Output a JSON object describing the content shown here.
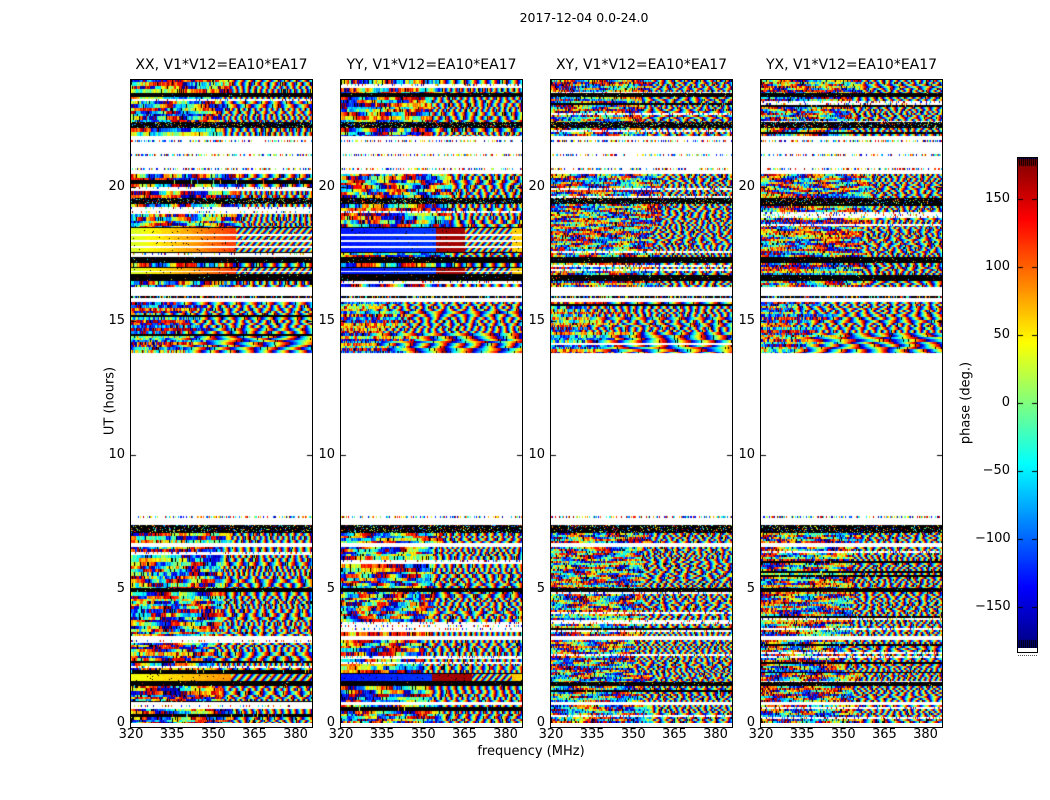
{
  "figure": {
    "title": "2017-12-04 0.0-24.0"
  },
  "chart_data": {
    "type": "heatmap",
    "title": "2017-12-04 0.0-24.0",
    "subplots": [
      {
        "title": "XX, V1*V12=EA10*EA17",
        "polarization": "XX"
      },
      {
        "title": "YY, V1*V12=EA10*EA17",
        "polarization": "YY"
      },
      {
        "title": "XY, V1*V12=EA10*EA17",
        "polarization": "XY"
      },
      {
        "title": "YX, V1*V12=EA10*EA17",
        "polarization": "YX"
      }
    ],
    "baseline": "V1*V12=EA10*EA17",
    "xlabel": "frequency (MHz)",
    "ylabel": "UT (hours)",
    "x_ticks": [
      320,
      335,
      350,
      365,
      380
    ],
    "x_range": [
      320,
      386
    ],
    "y_ticks": [
      0,
      5,
      10,
      15,
      20
    ],
    "y_range": [
      0,
      24
    ],
    "colorbar": {
      "label": "phase (deg.)",
      "ticks": [
        150,
        100,
        50,
        0,
        -50,
        -100,
        -150
      ],
      "range": [
        -180,
        180
      ],
      "colormap": "jet"
    },
    "data_gaps_ut": [
      [
        7.72,
        13.82
      ],
      [
        20.5,
        21.9
      ],
      [
        15.95,
        16.28
      ],
      [
        3.1,
        3.25
      ]
    ],
    "bands": [
      {
        "ut": [
          23.5,
          24.0
        ],
        "kind": "noise",
        "bias": [
          70,
          -100,
          0,
          0
        ],
        "fringe": 0.55
      },
      {
        "ut": [
          23.38,
          23.5
        ],
        "kind": "black"
      },
      {
        "ut": [
          22.45,
          23.38
        ],
        "kind": "noise",
        "bias": [
          70,
          -100,
          0,
          0
        ],
        "fringe": 0.5,
        "diag": 1
      },
      {
        "ut": [
          22.2,
          22.45
        ],
        "kind": "blacknoise"
      },
      {
        "ut": [
          21.9,
          22.2
        ],
        "kind": "noise",
        "bias": [
          60,
          -90,
          0,
          0
        ],
        "fringe": 0.5
      },
      {
        "ut": [
          21.75,
          21.9
        ],
        "kind": "blank"
      },
      {
        "ut": [
          21.65,
          21.75
        ],
        "kind": "thin"
      },
      {
        "ut": [
          21.25,
          21.65
        ],
        "kind": "blank"
      },
      {
        "ut": [
          21.1,
          21.25
        ],
        "kind": "thin"
      },
      {
        "ut": [
          20.72,
          21.1
        ],
        "kind": "blank"
      },
      {
        "ut": [
          20.62,
          20.72
        ],
        "kind": "thin"
      },
      {
        "ut": [
          20.5,
          20.62
        ],
        "kind": "blank"
      },
      {
        "ut": [
          19.6,
          20.5
        ],
        "kind": "noise",
        "bias": [
          65,
          -95,
          0,
          0
        ],
        "fringe": 0.6
      },
      {
        "ut": [
          19.38,
          19.6
        ],
        "kind": "blacknoise"
      },
      {
        "ut": [
          18.52,
          19.38
        ],
        "kind": "noise",
        "bias": [
          65,
          -95,
          0,
          0
        ],
        "fringe": 0.6
      },
      {
        "ut": [
          17.55,
          18.52
        ],
        "kind": "smooth",
        "variant": "s1"
      },
      {
        "ut": [
          17.38,
          17.55
        ],
        "kind": "noise",
        "bias": [
          60,
          -90,
          0,
          0
        ],
        "fringe": 0.6
      },
      {
        "ut": [
          17.18,
          17.38
        ],
        "kind": "black"
      },
      {
        "ut": [
          17.02,
          17.18
        ],
        "kind": "noise",
        "bias": [
          60,
          -90,
          0,
          0
        ],
        "fringe": 0.6
      },
      {
        "ut": [
          16.72,
          17.02
        ],
        "kind": "smooth",
        "variant": "s2"
      },
      {
        "ut": [
          16.5,
          16.72
        ],
        "kind": "black"
      },
      {
        "ut": [
          16.28,
          16.5
        ],
        "kind": "noise",
        "bias": [
          30,
          -60,
          0,
          0
        ],
        "fringe": 0.6
      },
      {
        "ut": [
          15.95,
          16.28
        ],
        "kind": "blank"
      },
      {
        "ut": [
          15.78,
          15.95
        ],
        "kind": "thinblack"
      },
      {
        "ut": [
          13.82,
          15.72
        ],
        "kind": "fringes"
      },
      {
        "ut": [
          7.72,
          13.82
        ],
        "kind": "blank"
      },
      {
        "ut": [
          7.58,
          7.72
        ],
        "kind": "thin"
      },
      {
        "ut": [
          7.38,
          7.58
        ],
        "kind": "blank"
      },
      {
        "ut": [
          7.08,
          7.38
        ],
        "kind": "blacknoise"
      },
      {
        "ut": [
          6.72,
          7.08
        ],
        "kind": "noise",
        "fringe": 0.55
      },
      {
        "ut": [
          6.58,
          6.72
        ],
        "kind": "blank"
      },
      {
        "ut": [
          5.05,
          6.58
        ],
        "kind": "noise",
        "fringe": 0.5
      },
      {
        "ut": [
          4.9,
          5.05
        ],
        "kind": "black"
      },
      {
        "ut": [
          3.25,
          4.9
        ],
        "kind": "noise",
        "fringe": 0.5
      },
      {
        "ut": [
          3.1,
          3.25
        ],
        "kind": "blank"
      },
      {
        "ut": [
          1.88,
          3.1
        ],
        "kind": "noise",
        "fringe": 0.45
      },
      {
        "ut": [
          1.52,
          1.88
        ],
        "kind": "smooth",
        "variant": "s3"
      },
      {
        "ut": [
          1.38,
          1.52
        ],
        "kind": "black"
      },
      {
        "ut": [
          0.78,
          1.38
        ],
        "kind": "noise",
        "fringe": 0.5
      },
      {
        "ut": [
          0.68,
          0.78
        ],
        "kind": "blank"
      },
      {
        "ut": [
          0.0,
          0.68
        ],
        "kind": "noise",
        "fringe": 0.55
      }
    ]
  }
}
